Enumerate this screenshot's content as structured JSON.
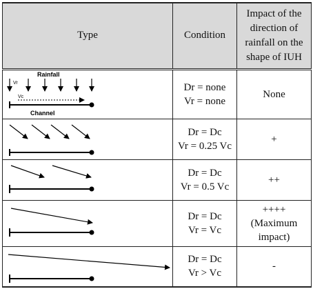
{
  "table": {
    "header": [
      "Type",
      "Condition",
      "Impact of the direction of rainfall on the shape of IUH"
    ],
    "diagram_labels": {
      "rainfall": "Rainfall",
      "channel": "Channel",
      "vr": "Vr",
      "vc": "Vc"
    },
    "rows": [
      {
        "condition": [
          "Dr = none",
          "Vr = none"
        ],
        "impact": [
          "None"
        ]
      },
      {
        "condition": [
          "Dr = Dc",
          "Vr = 0.25 Vc"
        ],
        "impact": [
          "+"
        ]
      },
      {
        "condition": [
          "Dr = Dc",
          "Vr = 0.5 Vc"
        ],
        "impact": [
          "++"
        ]
      },
      {
        "condition": [
          "Dr = Dc",
          "Vr = Vc"
        ],
        "impact": [
          "++++",
          "(Maximum impact)"
        ]
      },
      {
        "condition": [
          "Dr = Dc",
          "Vr > Vc"
        ],
        "impact": [
          "-"
        ]
      }
    ]
  }
}
